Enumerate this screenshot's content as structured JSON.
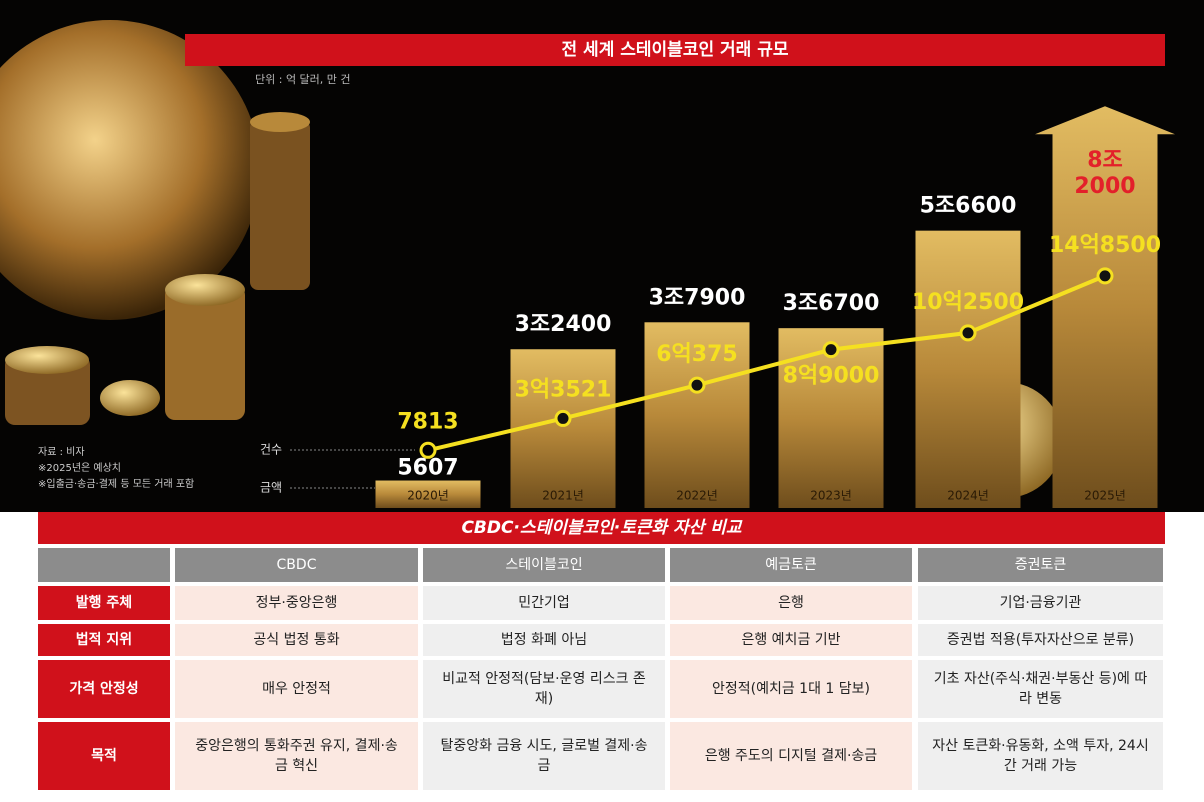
{
  "chart_data": {
    "type": "bar",
    "title": "전 세계 스테이블코인 거래 규모",
    "unit": "단위 : 억 달러, 만 건",
    "categories": [
      "2020년",
      "2021년",
      "2022년",
      "2023년",
      "2024년",
      "2025년"
    ],
    "series": [
      {
        "name": "금액",
        "type": "bar",
        "color": "#c9a24a",
        "values": [
          5607,
          32400,
          37900,
          36700,
          56600,
          82000
        ],
        "value_labels": [
          "5607",
          "3조2400",
          "3조7900",
          "3조6700",
          "5조6600",
          "8조 2000"
        ]
      },
      {
        "name": "건수",
        "type": "line",
        "color": "#f5e020",
        "values": [
          7813,
          33521,
          60375,
          89000,
          102500,
          148500
        ],
        "value_labels": [
          "7813",
          "3억3521",
          "6억375",
          "8억9000",
          "10억2500",
          "14억8500"
        ]
      }
    ],
    "notes": [
      "자료 : 비자",
      "※2025년은 예상치",
      "※입출금·송금·결제 등 모든 거래 포함"
    ]
  },
  "table": {
    "title": "CBDC·스테이블코인·토큰화 자산 비교",
    "headers": [
      "CBDC",
      "스테이블코인",
      "예금토큰",
      "증권토큰"
    ],
    "rows": [
      {
        "label": "발행 주체",
        "cells": [
          "정부·중앙은행",
          "민간기업",
          "은행",
          "기업·금융기관"
        ]
      },
      {
        "label": "법적 지위",
        "cells": [
          "공식 법정 통화",
          "법정 화폐 아님",
          "은행 예치금 기반",
          "증권법 적용(투자자산으로 분류)"
        ]
      },
      {
        "label": "가격 안정성",
        "cells": [
          "매우 안정적",
          "비교적 안정적(담보·운영 리스크 존재)",
          "안정적(예치금 1대 1 담보)",
          "기초 자산(주식·채권·부동산 등)에 따라 변동"
        ]
      },
      {
        "label": "목적",
        "cells": [
          "중앙은행의 통화주권 유지, 결제·송금 혁신",
          "탈중앙화 금융 시도, 글로벌 결제·송금",
          "은행 주도의 디지털 결제·송금",
          "자산 토큰화·유동화, 소액 투자, 24시간 거래 가능"
        ]
      }
    ]
  }
}
